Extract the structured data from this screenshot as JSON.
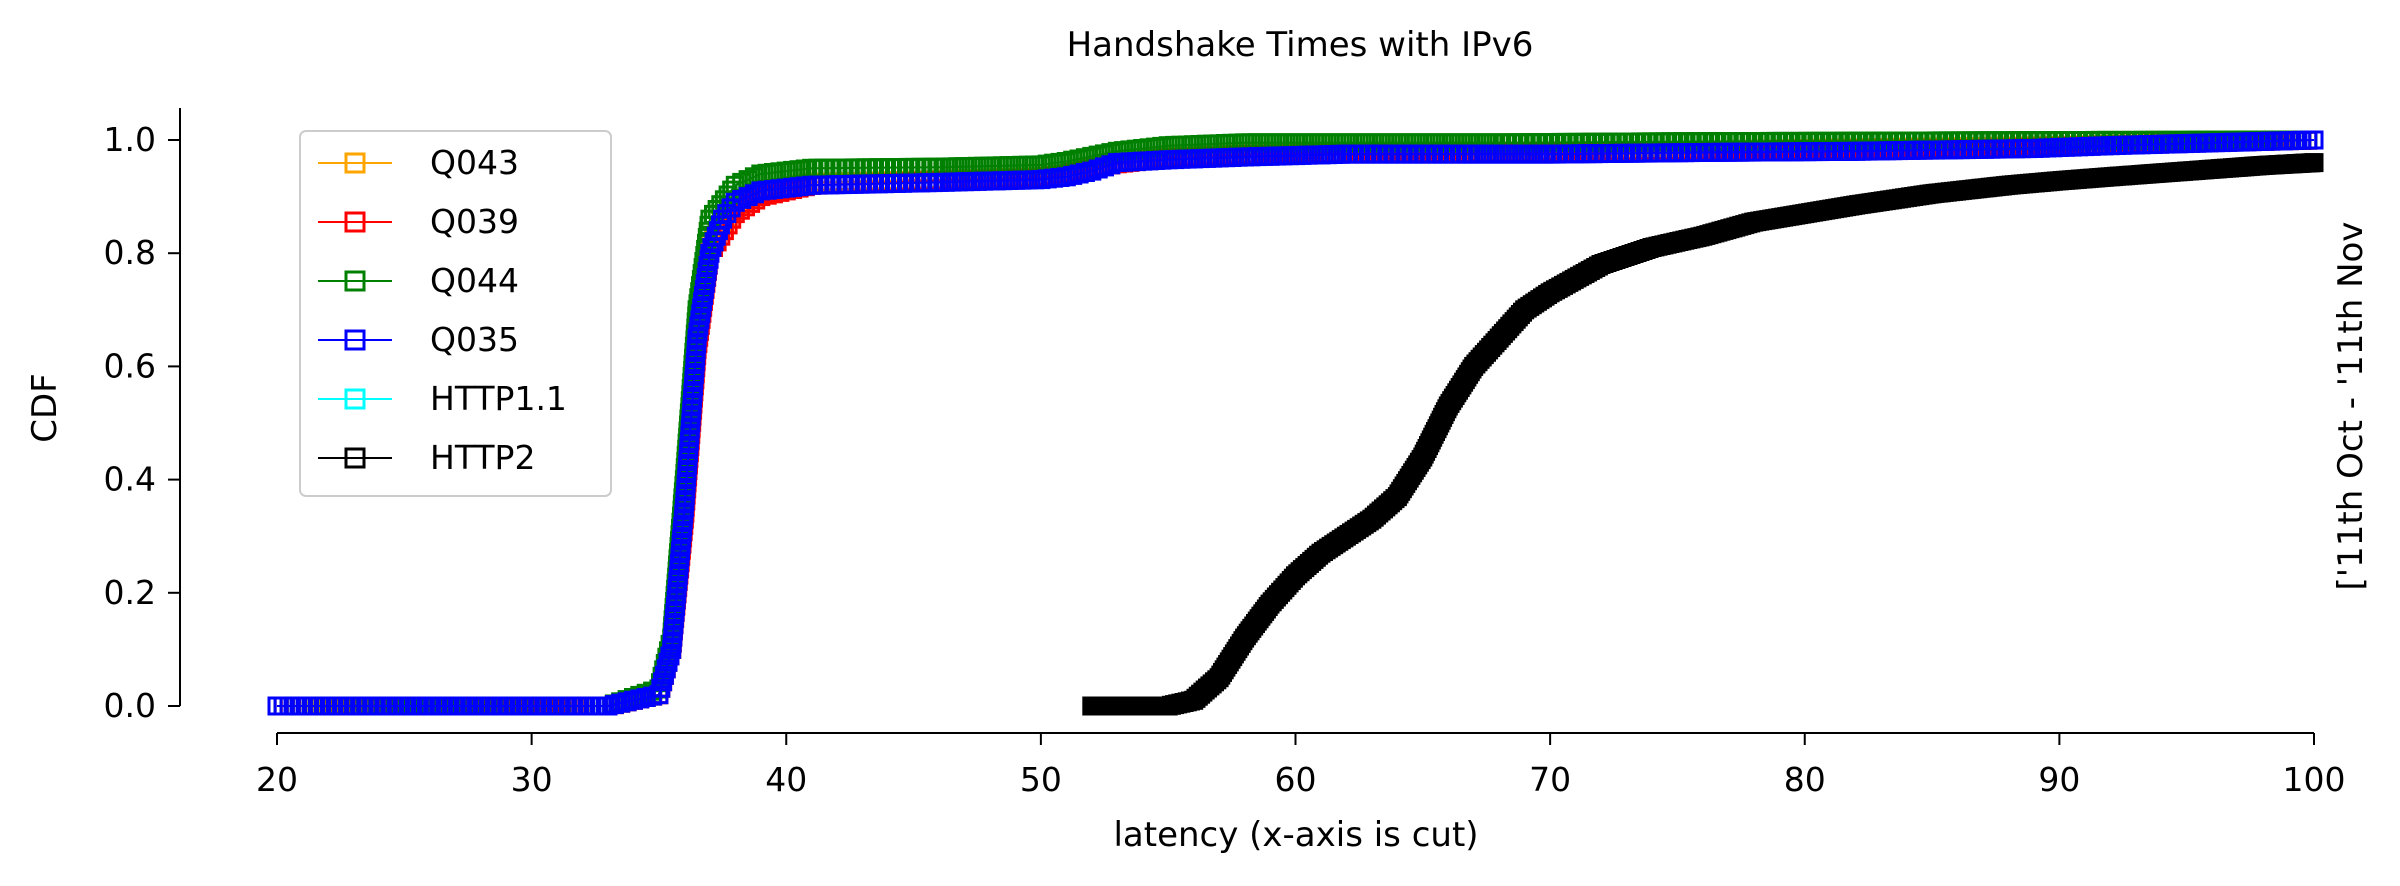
{
  "chart_data": {
    "type": "line",
    "title": "Handshake Times with IPv6",
    "xlabel": "latency (x-axis is cut)",
    "ylabel": "CDF",
    "side_note": "['11th Oct - '11th Nov",
    "xlim": [
      20,
      100
    ],
    "ylim": [
      0,
      1.0
    ],
    "xticks": [
      20,
      30,
      40,
      50,
      60,
      70,
      80,
      90,
      100
    ],
    "yticks": [
      0.0,
      0.2,
      0.4,
      0.6,
      0.8,
      1.0
    ],
    "xtick_labels": [
      "20",
      "30",
      "40",
      "50",
      "60",
      "70",
      "80",
      "90",
      "100"
    ],
    "ytick_labels": [
      "0.0",
      "0.2",
      "0.4",
      "0.6",
      "0.8",
      "1.0"
    ],
    "grid": false,
    "legend_position": "top-left",
    "marker": "square-open",
    "series": [
      {
        "name": "Q043",
        "color": "#ffa500",
        "x": [
          20,
          26.5,
          28.2,
          33,
          35,
          35.5,
          36,
          36.5,
          37,
          38,
          39,
          41,
          46,
          50,
          51,
          53,
          55,
          58,
          65,
          70,
          73.5,
          80,
          90,
          100
        ],
        "y": [
          0.0,
          0.0,
          0.0,
          0.0,
          0.02,
          0.1,
          0.35,
          0.65,
          0.82,
          0.88,
          0.91,
          0.925,
          0.93,
          0.935,
          0.94,
          0.96,
          0.97,
          0.975,
          0.98,
          0.98,
          0.98,
          0.985,
          0.99,
          1.0
        ]
      },
      {
        "name": "Q039",
        "color": "#ff0000",
        "x": [
          20,
          30.5,
          31.1,
          33,
          35,
          35.5,
          36,
          36.5,
          37,
          38,
          39,
          41,
          46,
          50,
          51,
          53,
          55,
          58,
          65,
          69,
          71,
          80,
          87,
          100
        ],
        "y": [
          0.0,
          0.0,
          0.0,
          0.0,
          0.02,
          0.1,
          0.33,
          0.63,
          0.8,
          0.87,
          0.9,
          0.92,
          0.928,
          0.933,
          0.94,
          0.958,
          0.968,
          0.974,
          0.978,
          0.978,
          0.98,
          0.983,
          0.985,
          1.0
        ]
      },
      {
        "name": "Q044",
        "color": "#008000",
        "x": [
          20,
          25.2,
          26,
          33,
          35,
          35.5,
          36,
          36.5,
          37,
          38,
          39,
          41,
          46,
          50,
          51,
          53,
          55,
          58,
          61,
          64,
          68,
          75,
          83,
          89,
          100
        ],
        "y": [
          0.0,
          0.0,
          0.0,
          0.0,
          0.03,
          0.12,
          0.4,
          0.7,
          0.86,
          0.92,
          0.94,
          0.95,
          0.952,
          0.956,
          0.962,
          0.98,
          0.99,
          0.995,
          0.995,
          0.995,
          0.995,
          0.997,
          0.998,
          0.999,
          1.0
        ]
      },
      {
        "name": "Q035",
        "color": "#0000ff",
        "x": [
          20,
          25,
          33,
          35,
          35.5,
          36,
          36.5,
          37,
          37.5,
          38,
          39,
          41,
          46,
          50,
          51,
          52,
          53,
          55,
          58,
          62,
          67,
          70,
          76,
          82,
          89,
          92,
          100
        ],
        "y": [
          0.0,
          0.0,
          0.0,
          0.02,
          0.1,
          0.35,
          0.65,
          0.8,
          0.86,
          0.89,
          0.91,
          0.92,
          0.925,
          0.93,
          0.935,
          0.945,
          0.96,
          0.965,
          0.97,
          0.975,
          0.975,
          0.975,
          0.978,
          0.98,
          0.985,
          0.99,
          1.0
        ]
      },
      {
        "name": "HTTP1.1",
        "color": "#00ffff",
        "x": [],
        "y": []
      },
      {
        "name": "HTTP2",
        "color": "#000000",
        "x": [
          52,
          54,
          55,
          56,
          57,
          58,
          59,
          60,
          61,
          62,
          63,
          64,
          65,
          66,
          67,
          68,
          69,
          70,
          72,
          74,
          76,
          78,
          80,
          82,
          85,
          88,
          90,
          92,
          95,
          98,
          100
        ],
        "y": [
          0.0,
          0.0,
          0.0,
          0.01,
          0.05,
          0.12,
          0.18,
          0.23,
          0.27,
          0.3,
          0.33,
          0.37,
          0.44,
          0.53,
          0.6,
          0.65,
          0.7,
          0.73,
          0.78,
          0.81,
          0.83,
          0.855,
          0.87,
          0.885,
          0.905,
          0.92,
          0.928,
          0.935,
          0.945,
          0.955,
          0.96
        ]
      }
    ]
  }
}
